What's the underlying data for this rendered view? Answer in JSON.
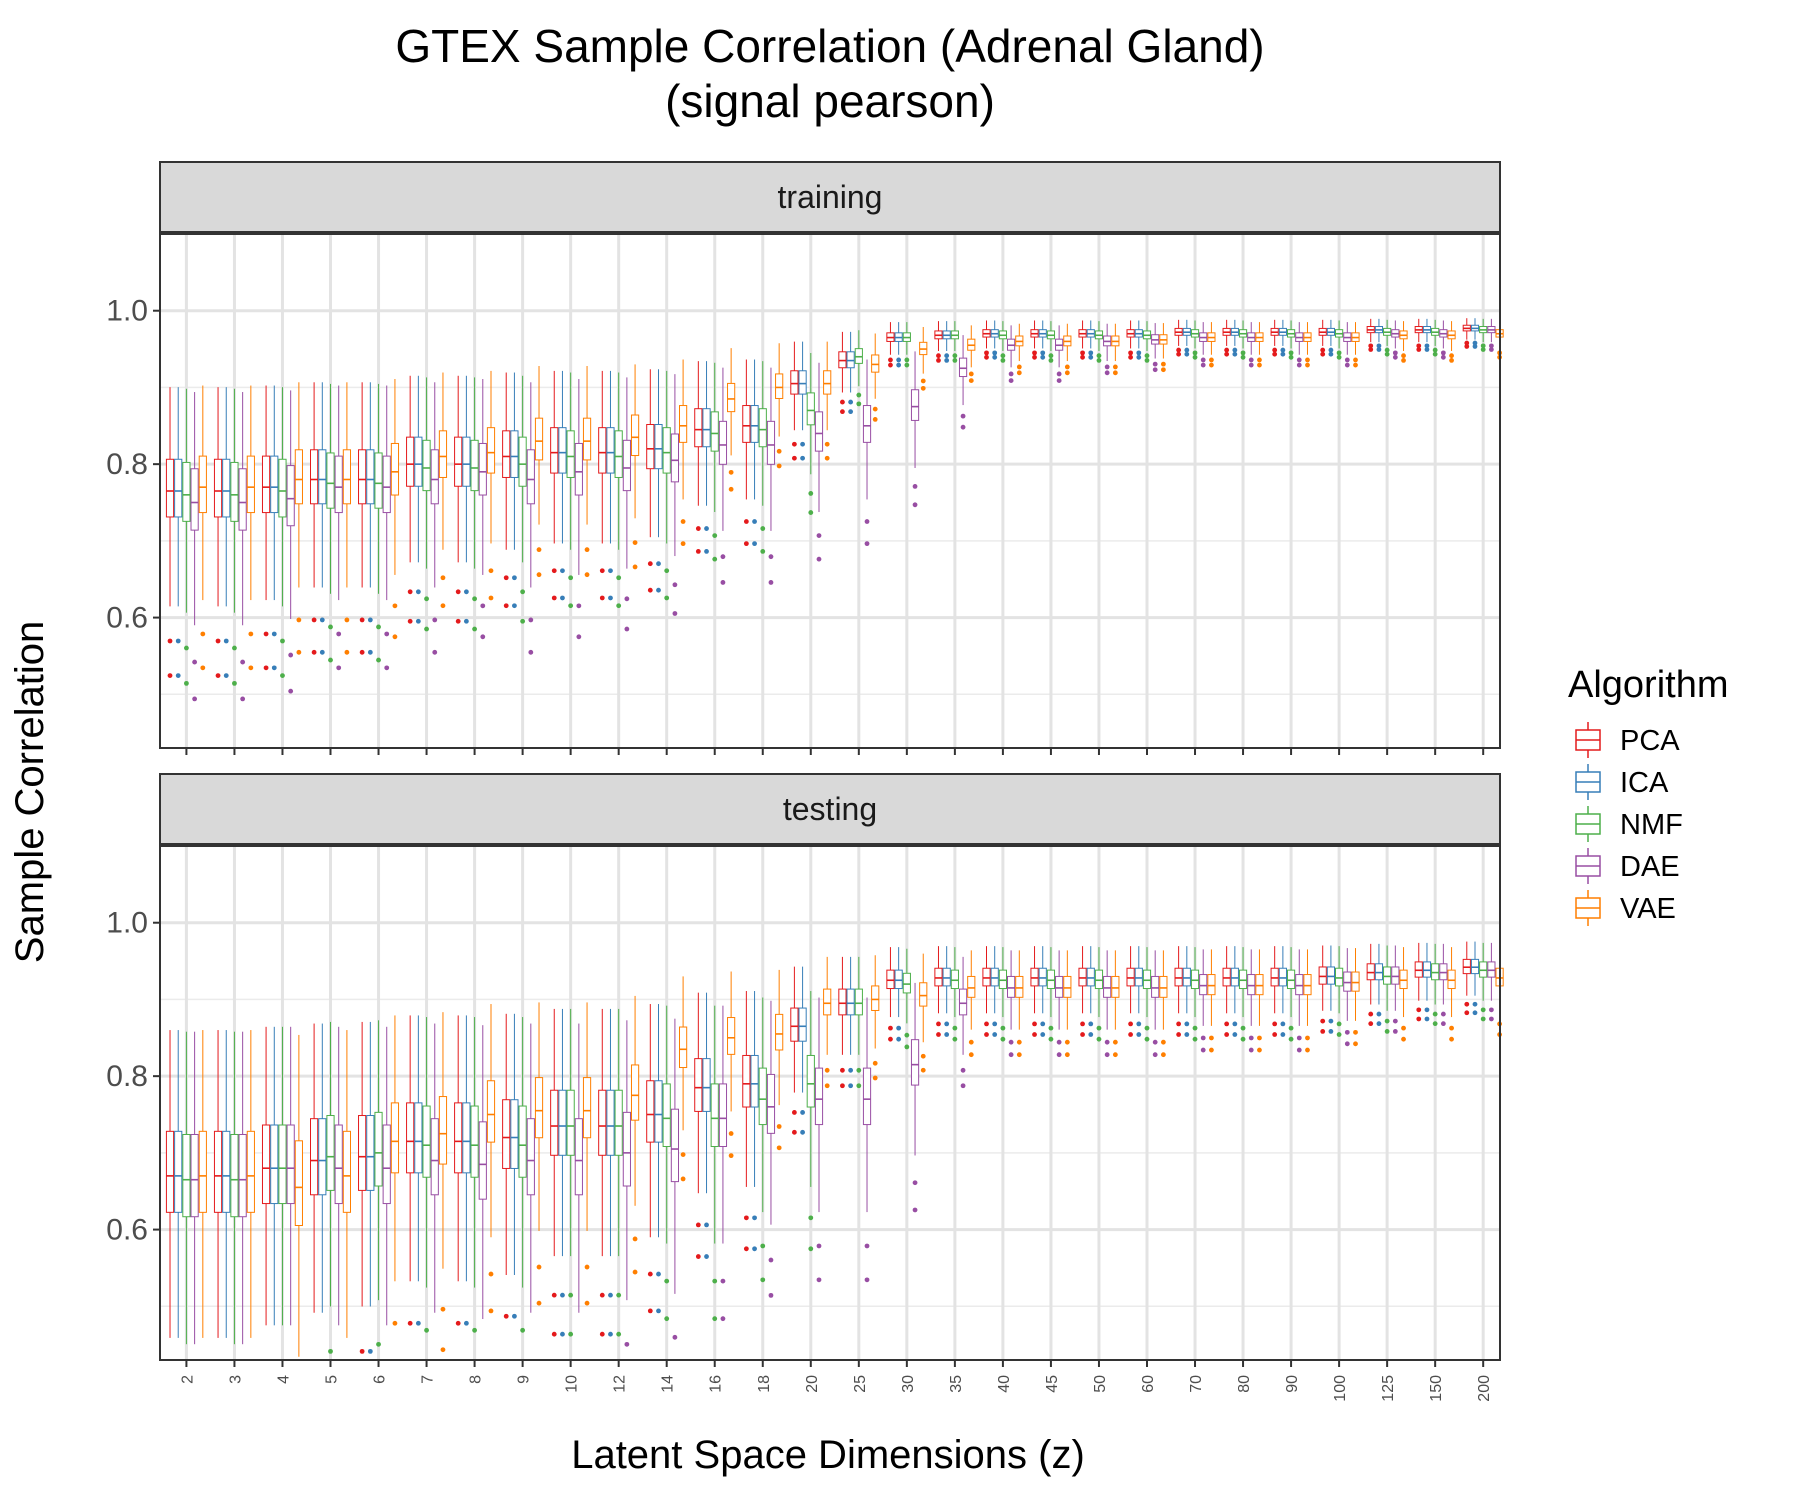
{
  "chart_data": {
    "type": "box",
    "title": [
      "GTEX Sample Correlation (Adrenal Gland)",
      "(signal pearson)"
    ],
    "xlabel": "Latent Space Dimensions (z)",
    "ylabel": "Sample Correlation",
    "ylim": [
      0.43,
      1.1
    ],
    "yticks": [
      "0.6",
      "0.8",
      "1.0"
    ],
    "grid": true,
    "legend": {
      "title": "Algorithm",
      "position": "right"
    },
    "categories": [
      "2",
      "3",
      "4",
      "5",
      "6",
      "7",
      "8",
      "9",
      "10",
      "12",
      "14",
      "16",
      "18",
      "20",
      "25",
      "30",
      "35",
      "40",
      "45",
      "50",
      "60",
      "70",
      "80",
      "90",
      "100",
      "125",
      "150",
      "200"
    ],
    "series": [
      {
        "name": "PCA",
        "color": "#E41A1C"
      },
      {
        "name": "ICA",
        "color": "#377EB8"
      },
      {
        "name": "NMF",
        "color": "#4DAF4A"
      },
      {
        "name": "DAE",
        "color": "#984EA3"
      },
      {
        "name": "VAE",
        "color": "#FF7F00"
      }
    ],
    "panels": [
      {
        "label": "training",
        "medians": {
          "PCA": [
            0.765,
            0.765,
            0.77,
            0.78,
            0.78,
            0.8,
            0.8,
            0.81,
            0.815,
            0.815,
            0.82,
            0.845,
            0.85,
            0.905,
            0.935,
            0.965,
            0.968,
            0.97,
            0.97,
            0.97,
            0.97,
            0.972,
            0.972,
            0.972,
            0.972,
            0.975,
            0.975,
            0.977
          ],
          "ICA": [
            0.765,
            0.765,
            0.77,
            0.78,
            0.78,
            0.8,
            0.8,
            0.81,
            0.815,
            0.815,
            0.82,
            0.845,
            0.85,
            0.905,
            0.935,
            0.965,
            0.968,
            0.97,
            0.97,
            0.97,
            0.97,
            0.972,
            0.972,
            0.972,
            0.972,
            0.975,
            0.975,
            0.977
          ],
          "NMF": [
            0.76,
            0.76,
            0.765,
            0.775,
            0.775,
            0.795,
            0.795,
            0.8,
            0.81,
            0.81,
            0.815,
            0.84,
            0.845,
            0.87,
            0.94,
            0.965,
            0.968,
            0.968,
            0.968,
            0.968,
            0.968,
            0.97,
            0.97,
            0.97,
            0.97,
            0.972,
            0.972,
            0.975
          ],
          "DAE": [
            0.75,
            0.75,
            0.755,
            0.77,
            0.77,
            0.78,
            0.79,
            0.78,
            0.79,
            0.795,
            0.805,
            0.825,
            0.825,
            0.84,
            0.85,
            0.875,
            0.925,
            0.955,
            0.955,
            0.96,
            0.962,
            0.965,
            0.965,
            0.965,
            0.965,
            0.97,
            0.97,
            0.975
          ],
          "VAE": [
            0.77,
            0.77,
            0.78,
            0.78,
            0.79,
            0.81,
            0.815,
            0.83,
            0.83,
            0.835,
            0.85,
            0.885,
            0.9,
            0.905,
            0.93,
            0.95,
            0.955,
            0.96,
            0.96,
            0.96,
            0.962,
            0.965,
            0.965,
            0.965,
            0.965,
            0.968,
            0.968,
            0.97
          ]
        }
      },
      {
        "label": "testing",
        "medians": {
          "PCA": [
            0.67,
            0.67,
            0.68,
            0.69,
            0.695,
            0.715,
            0.715,
            0.72,
            0.735,
            0.735,
            0.75,
            0.785,
            0.79,
            0.865,
            0.895,
            0.925,
            0.928,
            0.928,
            0.928,
            0.928,
            0.928,
            0.928,
            0.928,
            0.928,
            0.93,
            0.935,
            0.938,
            0.942
          ],
          "ICA": [
            0.67,
            0.67,
            0.68,
            0.69,
            0.695,
            0.715,
            0.715,
            0.72,
            0.735,
            0.735,
            0.75,
            0.785,
            0.79,
            0.865,
            0.895,
            0.925,
            0.928,
            0.928,
            0.928,
            0.928,
            0.928,
            0.928,
            0.928,
            0.928,
            0.93,
            0.935,
            0.938,
            0.942
          ],
          "NMF": [
            0.665,
            0.665,
            0.68,
            0.695,
            0.7,
            0.71,
            0.71,
            0.71,
            0.735,
            0.735,
            0.745,
            0.745,
            0.77,
            0.79,
            0.895,
            0.92,
            0.925,
            0.925,
            0.925,
            0.925,
            0.925,
            0.925,
            0.925,
            0.925,
            0.928,
            0.93,
            0.935,
            0.938
          ],
          "DAE": [
            0.665,
            0.665,
            0.68,
            0.68,
            0.68,
            0.69,
            0.685,
            0.69,
            0.69,
            0.7,
            0.705,
            0.745,
            0.76,
            0.77,
            0.77,
            0.815,
            0.895,
            0.915,
            0.915,
            0.915,
            0.915,
            0.918,
            0.918,
            0.918,
            0.922,
            0.93,
            0.935,
            0.938
          ],
          "VAE": [
            0.67,
            0.67,
            0.655,
            0.67,
            0.715,
            0.725,
            0.75,
            0.755,
            0.755,
            0.775,
            0.835,
            0.85,
            0.855,
            0.895,
            0.9,
            0.905,
            0.915,
            0.915,
            0.915,
            0.915,
            0.915,
            0.918,
            0.918,
            0.918,
            0.922,
            0.925,
            0.925,
            0.928
          ]
        }
      }
    ]
  }
}
